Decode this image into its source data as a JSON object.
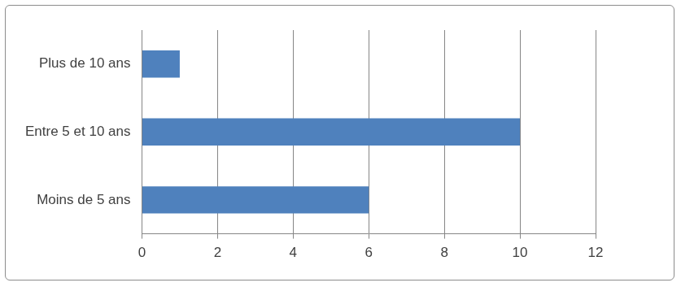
{
  "chart_data": {
    "type": "bar",
    "orientation": "horizontal",
    "categories": [
      "Plus de 10 ans",
      "Entre 5 et 10 ans",
      "Moins de 5 ans"
    ],
    "values": [
      1,
      10,
      6
    ],
    "color": "#4f81bd",
    "xlim": [
      0,
      12
    ],
    "xticks": [
      0,
      2,
      4,
      6,
      8,
      10,
      12
    ],
    "grid": true
  }
}
